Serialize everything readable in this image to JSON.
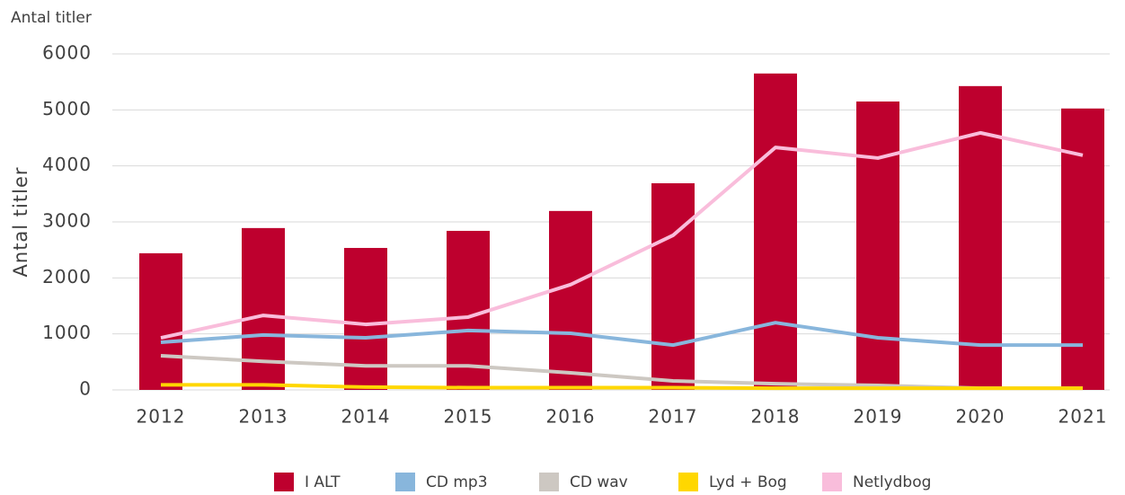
{
  "chart_data": {
    "type": "bar",
    "title": "Antal titler",
    "y_label": "Antal titler",
    "categories": [
      "2012",
      "2013",
      "2014",
      "2015",
      "2016",
      "2017",
      "2018",
      "2019",
      "2020",
      "2021"
    ],
    "series": [
      {
        "name": "I ALT",
        "type": "bar",
        "color": "#be002e",
        "values": [
          2440,
          2890,
          2535,
          2840,
          3195,
          3690,
          5650,
          5150,
          5425,
          5025
        ]
      },
      {
        "name": "CD mp3",
        "type": "line",
        "color": "#88b6dc",
        "values": [
          850,
          980,
          930,
          1060,
          1010,
          800,
          1200,
          930,
          800,
          800
        ]
      },
      {
        "name": "CD wav",
        "type": "line",
        "color": "#cdc8c2",
        "values": [
          610,
          510,
          430,
          430,
          305,
          160,
          110,
          80,
          30,
          30
        ]
      },
      {
        "name": "Lyd + Bog",
        "type": "line",
        "color": "#ffd700",
        "values": [
          90,
          90,
          50,
          40,
          40,
          40,
          30,
          30,
          30,
          30
        ]
      },
      {
        "name": "Netlydbog",
        "type": "line",
        "color": "#f9bddb",
        "values": [
          930,
          1330,
          1170,
          1300,
          1880,
          2760,
          4330,
          4140,
          4590,
          4190
        ]
      }
    ],
    "ylim": [
      0,
      6000
    ],
    "yticks": [
      0,
      1000,
      2000,
      3000,
      4000,
      5000,
      6000
    ],
    "grid": true,
    "legend": "bottom"
  }
}
